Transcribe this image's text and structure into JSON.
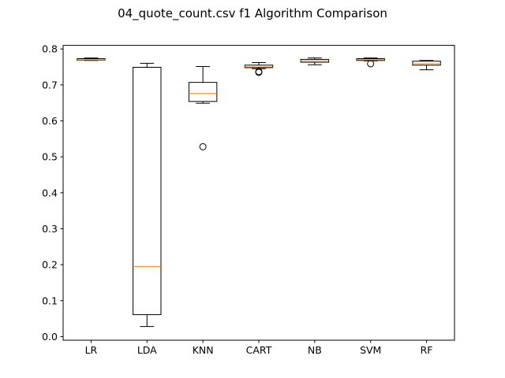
{
  "chart_data": {
    "type": "box",
    "title": "04_quote_count.csv f1 Algorithm Comparison",
    "xlabel": "",
    "ylabel": "",
    "ylim": [
      -0.01,
      0.81
    ],
    "yticks": [
      0.0,
      0.1,
      0.2,
      0.3,
      0.4,
      0.5,
      0.6,
      0.7,
      0.8
    ],
    "ytick_labels": [
      "0.0",
      "0.1",
      "0.2",
      "0.3",
      "0.4",
      "0.5",
      "0.6",
      "0.7",
      "0.8"
    ],
    "grid": false,
    "box_color": "#000000",
    "median_color": "#ff7f0e",
    "categories": [
      "LR",
      "LDA",
      "KNN",
      "CART",
      "NB",
      "SVM",
      "RF"
    ],
    "boxes": [
      {
        "whislo": 0.768,
        "q1": 0.769,
        "med": 0.77,
        "q3": 0.773,
        "whishi": 0.775,
        "fliers": []
      },
      {
        "whislo": 0.028,
        "q1": 0.061,
        "med": 0.195,
        "q3": 0.749,
        "whishi": 0.76,
        "fliers": []
      },
      {
        "whislo": 0.649,
        "q1": 0.654,
        "med": 0.676,
        "q3": 0.707,
        "whishi": 0.751,
        "fliers": [
          0.528
        ]
      },
      {
        "whislo": 0.745,
        "q1": 0.748,
        "med": 0.75,
        "q3": 0.755,
        "whishi": 0.762,
        "fliers": [
          0.737,
          0.735
        ]
      },
      {
        "whislo": 0.756,
        "q1": 0.763,
        "med": 0.767,
        "q3": 0.771,
        "whishi": 0.775,
        "fliers": []
      },
      {
        "whislo": 0.767,
        "q1": 0.768,
        "med": 0.77,
        "q3": 0.773,
        "whishi": 0.775,
        "fliers": [
          0.759
        ]
      },
      {
        "whislo": 0.742,
        "q1": 0.755,
        "med": 0.759,
        "q3": 0.766,
        "whishi": 0.768,
        "fliers": []
      }
    ]
  }
}
